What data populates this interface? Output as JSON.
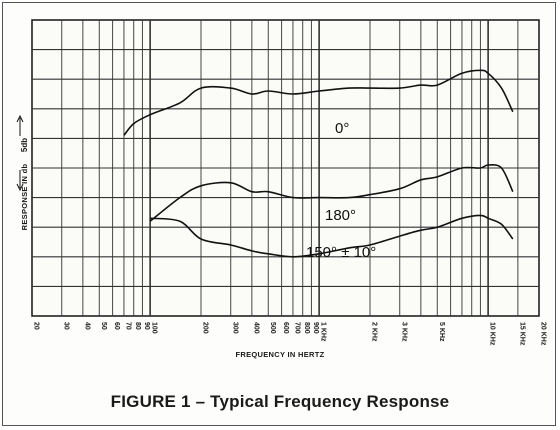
{
  "caption": "FIGURE 1 – Typical Frequency Response",
  "chart_data": {
    "type": "line",
    "title": "FIGURE 1 – Typical Frequency Response",
    "xlabel": "FREQUENCY IN HERTZ",
    "ylabel": "RESPONSE IN db",
    "scale_marker": "5db",
    "x_scale": "log",
    "xlim": [
      20,
      20000
    ],
    "ylim": [
      0,
      50
    ],
    "grid": true,
    "x_ticks": [
      {
        "value": 20,
        "label": "20"
      },
      {
        "value": 30,
        "label": "30"
      },
      {
        "value": 40,
        "label": "40"
      },
      {
        "value": 50,
        "label": "50"
      },
      {
        "value": 60,
        "label": "60"
      },
      {
        "value": 70,
        "label": "70"
      },
      {
        "value": 80,
        "label": "80"
      },
      {
        "value": 90,
        "label": "90"
      },
      {
        "value": 100,
        "label": "100"
      },
      {
        "value": 200,
        "label": "200"
      },
      {
        "value": 300,
        "label": "300"
      },
      {
        "value": 400,
        "label": "400"
      },
      {
        "value": 500,
        "label": "500"
      },
      {
        "value": 600,
        "label": "600"
      },
      {
        "value": 700,
        "label": "700"
      },
      {
        "value": 800,
        "label": "800"
      },
      {
        "value": 900,
        "label": "900"
      },
      {
        "value": 1000,
        "label": "1 KHz"
      },
      {
        "value": 2000,
        "label": "2 KHz"
      },
      {
        "value": 3000,
        "label": "3 KHz"
      },
      {
        "value": 5000,
        "label": "5 KHz"
      },
      {
        "value": 10000,
        "label": "10 KHz"
      },
      {
        "value": 15000,
        "label": "15 KHz"
      },
      {
        "value": 20000,
        "label": "20 KHz"
      }
    ],
    "series": [
      {
        "name": "0°",
        "x": [
          70,
          80,
          100,
          150,
          200,
          300,
          400,
          500,
          700,
          1000,
          1500,
          2000,
          3000,
          4000,
          5000,
          7000,
          9000,
          10000,
          12000,
          14000
        ],
        "y": [
          30.5,
          32.5,
          34,
          36,
          38.5,
          38.5,
          37.5,
          38,
          37.5,
          38,
          38.5,
          38.5,
          38.5,
          39,
          39,
          41,
          41.5,
          41,
          38.5,
          34.5
        ]
      },
      {
        "name": "180°",
        "x": [
          100,
          150,
          200,
          300,
          400,
          500,
          700,
          1000,
          1500,
          2000,
          3000,
          4000,
          5000,
          7000,
          9000,
          10000,
          12000,
          14000
        ],
        "y": [
          16,
          20,
          22,
          22.5,
          21,
          21,
          20,
          20,
          20,
          20.5,
          21.5,
          23,
          23.5,
          25,
          25,
          25.5,
          25,
          21
        ]
      },
      {
        "name": "150° ± 10°",
        "x": [
          100,
          150,
          200,
          300,
          400,
          500,
          700,
          1000,
          1500,
          2000,
          3000,
          4000,
          5000,
          7000,
          9000,
          10000,
          12000,
          14000
        ],
        "y": [
          16.5,
          16,
          13,
          12,
          11,
          10.5,
          10,
          10.5,
          11.5,
          12,
          13.5,
          14.5,
          15,
          16.5,
          17,
          16.5,
          15.5,
          13
        ]
      }
    ],
    "annotations": [
      "0°",
      "180°",
      "150° ± 10°"
    ]
  }
}
